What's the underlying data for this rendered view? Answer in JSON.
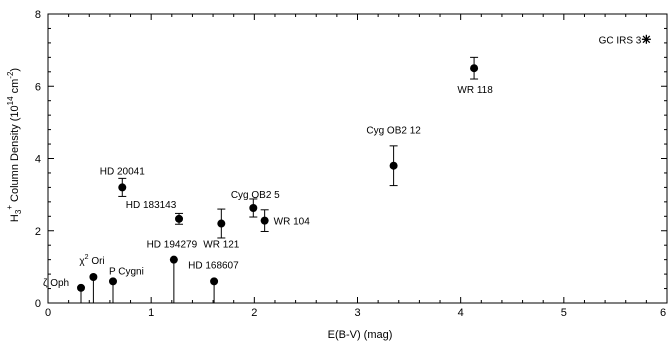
{
  "chart_data": {
    "type": "scatter",
    "title": "",
    "xlabel": "E(B-V) (mag)",
    "ylabel": {
      "prefix": "H",
      "sub": "3",
      "sup": "+",
      "middle": " Column Density (10",
      "exp": "14",
      "unit": " cm",
      "unit_exp": "-2",
      "suffix": ")"
    },
    "xlim": [
      0,
      6
    ],
    "ylim": [
      0,
      8
    ],
    "xticks": [
      0,
      1,
      2,
      3,
      4,
      5,
      6
    ],
    "yticks": [
      0,
      2,
      4,
      6,
      8
    ],
    "x_tick_labels": [
      "0",
      "1",
      "2",
      "3",
      "4",
      "5",
      "6"
    ],
    "y_tick_labels": [
      "0",
      "2",
      "4",
      "6",
      "8"
    ],
    "grid": false,
    "points": [
      {
        "name": "ζ Oph",
        "x": 0.32,
        "y": 0.42,
        "kind": "upper_limit"
      },
      {
        "name": "χ² Ori",
        "label_base": "χ",
        "label_sup": "2",
        "label_rest": " Ori",
        "x": 0.44,
        "y": 0.72,
        "kind": "upper_limit"
      },
      {
        "name": "P Cygni",
        "x": 0.63,
        "y": 0.6,
        "kind": "upper_limit"
      },
      {
        "name": "HD 20041",
        "x": 0.72,
        "y": 3.2,
        "err": 0.25,
        "kind": "detection"
      },
      {
        "name": "HD 183143",
        "x": 1.27,
        "y": 2.33,
        "err": 0.15,
        "kind": "detection"
      },
      {
        "name": "HD 194279",
        "x": 1.22,
        "y": 1.2,
        "kind": "upper_limit"
      },
      {
        "name": "HD 168607",
        "x": 1.61,
        "y": 0.6,
        "kind": "upper_limit"
      },
      {
        "name": "WR 121",
        "x": 1.68,
        "y": 2.2,
        "err": 0.4,
        "kind": "detection"
      },
      {
        "name": "Cyg OB2 5",
        "x": 1.99,
        "y": 2.63,
        "err": 0.25,
        "kind": "detection"
      },
      {
        "name": "WR 104",
        "x": 2.1,
        "y": 2.28,
        "err": 0.3,
        "kind": "detection"
      },
      {
        "name": "Cyg OB2 12",
        "x": 3.35,
        "y": 3.8,
        "err": 0.55,
        "kind": "detection"
      },
      {
        "name": "WR 118",
        "x": 4.13,
        "y": 6.5,
        "err": 0.3,
        "kind": "detection"
      },
      {
        "name": "GC IRS 3",
        "x": 5.8,
        "y": 7.3,
        "kind": "star"
      }
    ]
  }
}
